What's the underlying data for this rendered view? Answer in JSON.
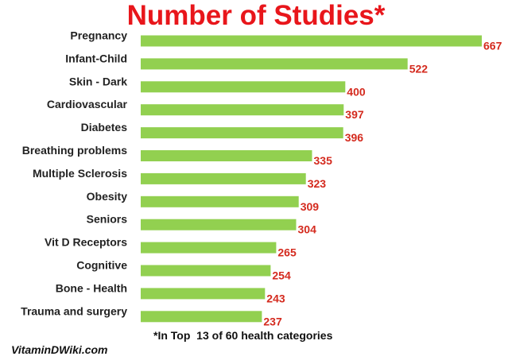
{
  "chart_data": {
    "type": "bar",
    "orientation": "horizontal",
    "title": "Number of Studies*",
    "categories": [
      "Pregnancy",
      "Infant-Child",
      "Skin - Dark",
      "Cardiovascular",
      "Diabetes",
      "Breathing problems",
      "Multiple Sclerosis",
      "Obesity",
      "Seniors",
      "Vit D Receptors",
      "Cognitive",
      "Bone - Health",
      "Trauma and surgery"
    ],
    "values": [
      667,
      522,
      400,
      397,
      396,
      335,
      323,
      309,
      304,
      265,
      254,
      243,
      237
    ],
    "data_labels": [
      "667",
      "522",
      "400",
      "397",
      "396",
      "335",
      "323",
      "309",
      "304",
      "265",
      "254",
      "243",
      "237"
    ],
    "xlim": [
      0,
      667
    ],
    "grid": false,
    "legend": "none",
    "bar_color": "#92d050",
    "title_color": "#e8161b",
    "value_label_color": "#d42a1e"
  },
  "footnote": "*In Top  13 of 60 health categories",
  "site_credit": "VitaminDWiki.com"
}
